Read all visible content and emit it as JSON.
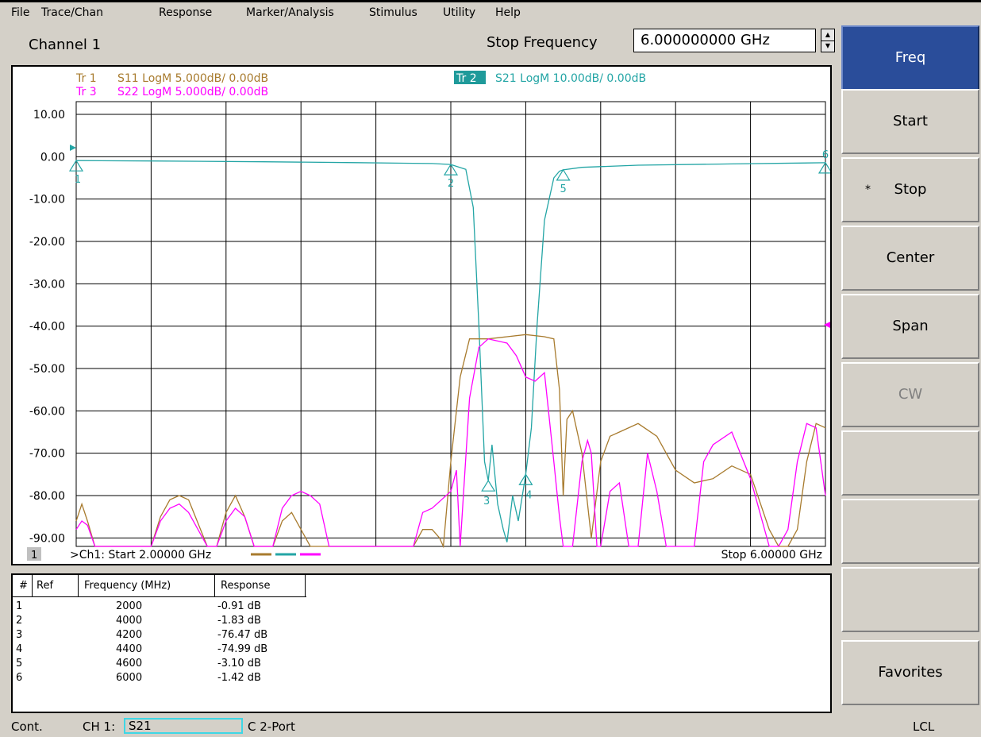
{
  "menu": [
    "File",
    "Trace/Chan",
    "Response",
    "Marker/Analysis",
    "Stimulus",
    "Utility",
    "Help"
  ],
  "channel": {
    "title": "Channel 1",
    "entry_label": "Stop Frequency",
    "entry_value": "6.000000000 GHz"
  },
  "traces": [
    {
      "id": "Tr 1",
      "desc": "S11 LogM 5.000dB/ 0.00dB",
      "color": "#a87b2e"
    },
    {
      "id": "Tr 2",
      "desc": "S21 LogM 10.00dB/ 0.00dB",
      "color": "#23a5a5"
    },
    {
      "id": "Tr 3",
      "desc": "S22 LogM 5.000dB/ 0.00dB",
      "color": "#ff00ff"
    }
  ],
  "chart_data": {
    "type": "line",
    "x_unit": "GHz",
    "xlim": [
      2.0,
      6.0
    ],
    "ylim": [
      -92,
      13
    ],
    "y_ticks": [
      "10.00",
      "0.00",
      "-10.00",
      "-20.00",
      "-30.00",
      "-40.00",
      "-50.00",
      "-60.00",
      "-70.00",
      "-80.00",
      "-90.00"
    ],
    "y_tick_values": [
      10,
      0,
      -10,
      -20,
      -30,
      -40,
      -50,
      -60,
      -70,
      -80,
      -90
    ],
    "grid": true,
    "series": [
      {
        "name": "S21",
        "color": "#23a5a5",
        "x": [
          2.0,
          2.4,
          3.0,
          3.5,
          3.9,
          4.0,
          4.08,
          4.12,
          4.15,
          4.18,
          4.2,
          4.22,
          4.25,
          4.28,
          4.3,
          4.33,
          4.36,
          4.4,
          4.43,
          4.46,
          4.5,
          4.55,
          4.58,
          4.6,
          4.7,
          5.0,
          5.5,
          6.0
        ],
        "y": [
          -0.91,
          -1.0,
          -1.2,
          -1.4,
          -1.6,
          -1.83,
          -3.0,
          -12.0,
          -40.0,
          -72.0,
          -76.47,
          -68.0,
          -82.0,
          -88.0,
          -91.0,
          -80.0,
          -86.0,
          -74.99,
          -64.0,
          -40.0,
          -15.0,
          -5.0,
          -3.4,
          -3.1,
          -2.5,
          -2.0,
          -1.7,
          -1.42
        ]
      },
      {
        "name": "S11",
        "color": "#a87b2e",
        "x": [
          2.0,
          2.03,
          2.06,
          2.1,
          2.15,
          2.2,
          2.3,
          2.4,
          2.45,
          2.5,
          2.55,
          2.6,
          2.7,
          2.75,
          2.8,
          2.85,
          2.9,
          2.95,
          3.0,
          3.05,
          3.1,
          3.15,
          3.2,
          3.25,
          3.3,
          3.35,
          3.4,
          3.45,
          3.5,
          3.55,
          3.6,
          3.7,
          3.8,
          3.85,
          3.9,
          3.94,
          3.96,
          4.0,
          4.05,
          4.1,
          4.15,
          4.2,
          4.3,
          4.4,
          4.5,
          4.55,
          4.58,
          4.6,
          4.62,
          4.65,
          4.7,
          4.75,
          4.8,
          4.85,
          4.9,
          5.0,
          5.1,
          5.2,
          5.3,
          5.4,
          5.5,
          5.6,
          5.7,
          5.75,
          5.8,
          5.85,
          5.9,
          5.95,
          6.0
        ],
        "y": [
          -86,
          -82,
          -86,
          -92,
          -92,
          -92,
          -92,
          -92,
          -85,
          -81,
          -80,
          -81,
          -92,
          -92,
          -84,
          -80,
          -85,
          -92,
          -92,
          -92,
          -86,
          -84,
          -88,
          -92,
          -92,
          -92,
          -92,
          -92,
          -92,
          -92,
          -92,
          -92,
          -92,
          -88,
          -88,
          -90,
          -92,
          -72,
          -52,
          -43,
          -43,
          -43,
          -42.5,
          -42,
          -42.5,
          -43,
          -55,
          -80,
          -62,
          -60,
          -70,
          -90,
          -72,
          -66,
          -65,
          -63,
          -66,
          -74,
          -77,
          -76,
          -73,
          -75,
          -88,
          -92,
          -92,
          -88,
          -72,
          -63,
          -64
        ]
      },
      {
        "name": "S22",
        "color": "#ff00ff",
        "x": [
          2.0,
          2.03,
          2.06,
          2.1,
          2.2,
          2.4,
          2.45,
          2.5,
          2.55,
          2.6,
          2.7,
          2.75,
          2.8,
          2.85,
          2.9,
          2.95,
          3.0,
          3.05,
          3.1,
          3.15,
          3.2,
          3.25,
          3.3,
          3.35,
          3.4,
          3.5,
          3.6,
          3.7,
          3.8,
          3.85,
          3.9,
          3.95,
          4.0,
          4.03,
          4.05,
          4.1,
          4.15,
          4.2,
          4.3,
          4.35,
          4.4,
          4.45,
          4.5,
          4.55,
          4.58,
          4.6,
          4.65,
          4.7,
          4.73,
          4.75,
          4.78,
          4.8,
          4.85,
          4.9,
          4.95,
          5.0,
          5.05,
          5.1,
          5.15,
          5.2,
          5.3,
          5.35,
          5.4,
          5.5,
          5.6,
          5.7,
          5.75,
          5.8,
          5.85,
          5.9,
          5.95,
          6.0
        ],
        "y": [
          -88,
          -86,
          -87,
          -92,
          -92,
          -92,
          -86,
          -83,
          -82,
          -84,
          -92,
          -92,
          -86,
          -83,
          -85,
          -92,
          -92,
          -92,
          -83,
          -80,
          -79,
          -80,
          -82,
          -92,
          -92,
          -92,
          -92,
          -92,
          -92,
          -84,
          -83,
          -81,
          -79,
          -74,
          -92,
          -57,
          -45,
          -43,
          -44,
          -47,
          -52,
          -53,
          -51,
          -72,
          -85,
          -92,
          -92,
          -72,
          -67,
          -70,
          -92,
          -92,
          -79,
          -77,
          -92,
          -92,
          -70,
          -79,
          -92,
          -92,
          -92,
          -72,
          -68,
          -65,
          -76,
          -92,
          -92,
          -88,
          -72,
          -63,
          -64,
          -80
        ]
      }
    ],
    "markers": [
      {
        "n": "1",
        "x": 2.0,
        "y": -0.91
      },
      {
        "n": "2",
        "x": 4.0,
        "y": -1.83
      },
      {
        "n": "3",
        "x": 4.2,
        "y": -76.47
      },
      {
        "n": "4",
        "x": 4.4,
        "y": -74.99
      },
      {
        "n": "5",
        "x": 4.6,
        "y": -3.1
      },
      {
        "n": "6",
        "x": 6.0,
        "y": -1.42
      }
    ]
  },
  "plot": {
    "channel_number": "1",
    "start_label": ">Ch1: Start  2.00000 GHz",
    "stop_label": "Stop  6.00000 GHz"
  },
  "marker_table": {
    "headers": [
      "#",
      "Ref",
      "Frequency (MHz)",
      "Response"
    ],
    "rows": [
      {
        "n": "1",
        "freq": "2000",
        "resp": "-0.91 dB"
      },
      {
        "n": "2",
        "freq": "4000",
        "resp": "-1.83 dB"
      },
      {
        "n": "3",
        "freq": "4200",
        "resp": "-76.47 dB"
      },
      {
        "n": "4",
        "freq": "4400",
        "resp": "-74.99 dB"
      },
      {
        "n": "5",
        "freq": "4600",
        "resp": "-3.10 dB"
      },
      {
        "n": "6",
        "freq": "6000",
        "resp": "-1.42 dB"
      }
    ]
  },
  "softkeys": [
    {
      "label": "Freq",
      "state": "active"
    },
    {
      "label": "Start",
      "state": "normal"
    },
    {
      "label": "Stop",
      "state": "selected",
      "mark": "*"
    },
    {
      "label": "Center",
      "state": "normal"
    },
    {
      "label": "Span",
      "state": "normal"
    },
    {
      "label": "CW",
      "state": "disabled"
    },
    {
      "label": "",
      "state": "normal"
    },
    {
      "label": "",
      "state": "normal"
    },
    {
      "label": "",
      "state": "normal"
    },
    {
      "label": "Favorites",
      "state": "normal"
    }
  ],
  "status": {
    "mode": "Cont.",
    "channel": "CH 1:",
    "measurement": "S21",
    "cal": "C  2-Port",
    "remote": "LCL"
  }
}
